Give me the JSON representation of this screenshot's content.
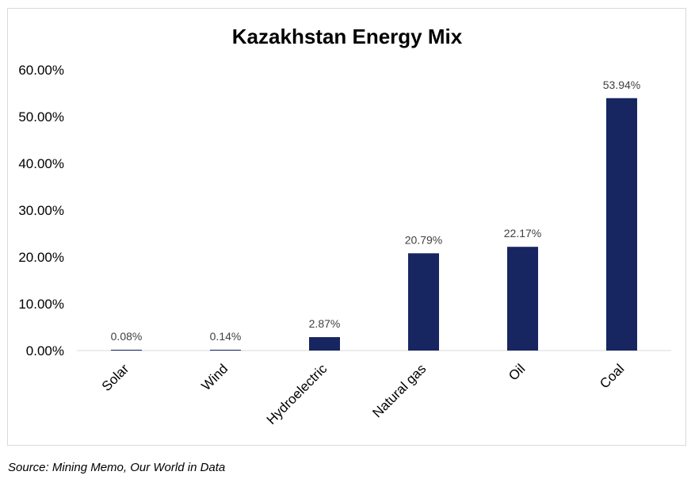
{
  "chart_data": {
    "type": "bar",
    "title": "Kazakhstan Energy Mix",
    "categories": [
      "Solar",
      "Wind",
      "Hydroelectric",
      "Natural gas",
      "Oil",
      "Coal"
    ],
    "values": [
      0.08,
      0.14,
      2.87,
      20.79,
      22.17,
      53.94
    ],
    "data_labels": [
      "0.08%",
      "0.14%",
      "2.87%",
      "20.79%",
      "22.17%",
      "53.94%"
    ],
    "yticks": [
      0,
      10,
      20,
      30,
      40,
      50,
      60
    ],
    "ytick_labels": [
      "0.00%",
      "10.00%",
      "20.00%",
      "30.00%",
      "40.00%",
      "50.00%",
      "60.00%"
    ],
    "ylim": [
      0,
      60
    ],
    "xlabel": "",
    "ylabel": "",
    "grid": false,
    "legend": "none",
    "bar_color": "#172660"
  },
  "source": "Source: Mining Memo, Our World in Data"
}
